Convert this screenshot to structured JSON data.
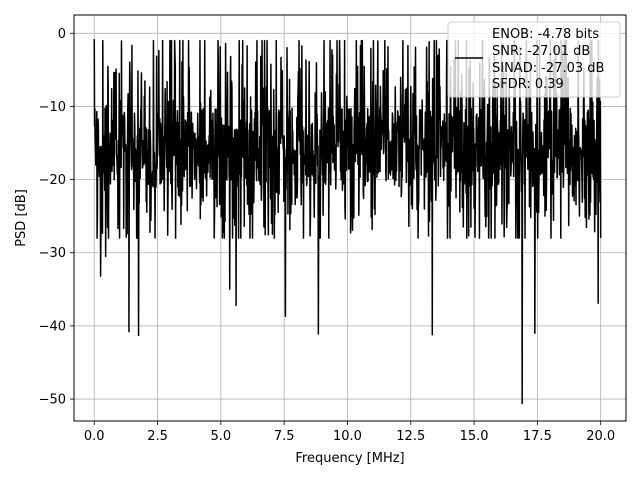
{
  "chart_data": {
    "type": "line",
    "title": "",
    "xlabel": "Frequency [MHz]",
    "ylabel": "PSD [dB]",
    "xlim": [
      -0.8,
      21.0
    ],
    "ylim": [
      -53.0,
      2.5
    ],
    "xticks": [
      0.0,
      2.5,
      5.0,
      7.5,
      10.0,
      12.5,
      15.0,
      17.5,
      20.0
    ],
    "xtick_labels": [
      "0.0",
      "2.5",
      "5.0",
      "7.5",
      "10.0",
      "12.5",
      "15.0",
      "17.5",
      "20.0"
    ],
    "yticks": [
      0,
      -10,
      -20,
      -30,
      -40,
      -50
    ],
    "ytick_labels": [
      "0",
      "−10",
      "−20",
      "−30",
      "−40",
      "−50"
    ],
    "grid": true,
    "legend_position": "top-right",
    "legend_lines": [
      "ENOB: -4.78 bits",
      "SNR: -27.01 dB",
      "SINAD: -27.03 dB",
      "SFDR: 0.39"
    ],
    "series": [
      {
        "color": "#000000",
        "x_start": 0.0,
        "x_end": 20.0,
        "baseline_db": -15.0,
        "envelope_top_db": -1.0,
        "envelope_bottom_db": -26.0,
        "notable_points": [
          {
            "x": 0.0,
            "y": -0.8
          },
          {
            "x": 0.25,
            "y": -33.2
          },
          {
            "x": 0.45,
            "y": -30.5
          },
          {
            "x": 1.37,
            "y": -40.8
          },
          {
            "x": 1.75,
            "y": -41.3
          },
          {
            "x": 5.35,
            "y": -35.0
          },
          {
            "x": 5.6,
            "y": -37.2
          },
          {
            "x": 7.55,
            "y": -38.7
          },
          {
            "x": 8.85,
            "y": -41.1
          },
          {
            "x": 13.35,
            "y": -41.2
          },
          {
            "x": 16.9,
            "y": -50.6
          },
          {
            "x": 17.4,
            "y": -41.0
          },
          {
            "x": 19.9,
            "y": -36.9
          }
        ]
      }
    ]
  }
}
